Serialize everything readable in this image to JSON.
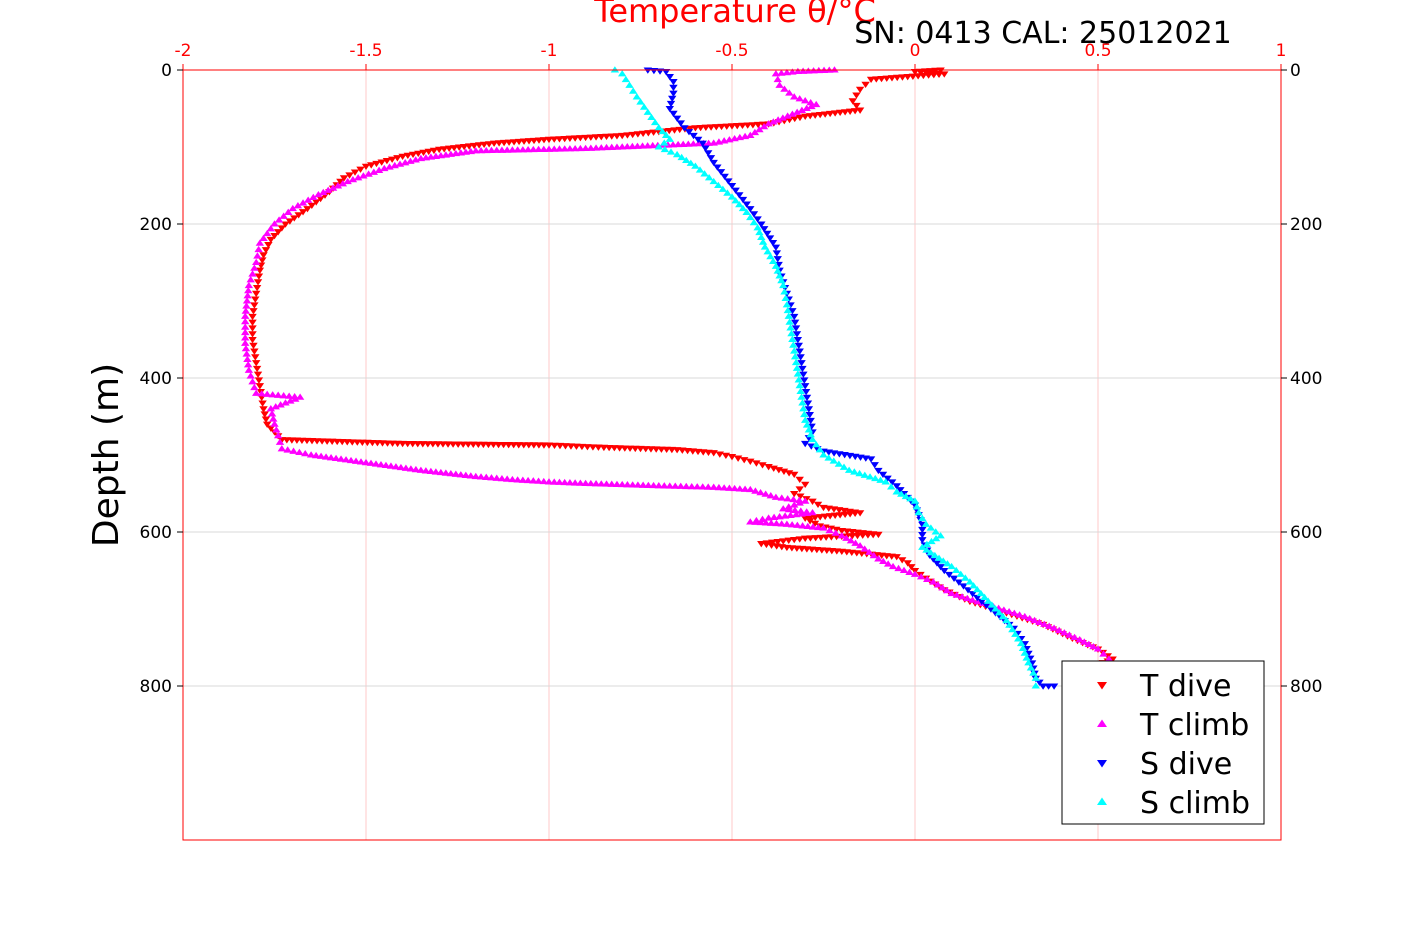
{
  "chart_data": {
    "type": "scatter",
    "title": "Temperature θ/°C",
    "subtitle": "SN: 0413  CAL: 25012021",
    "xlabel": "Temperature θ/°C",
    "ylabel": "Depth (m)",
    "xlim": [
      -2,
      1
    ],
    "ylim": [
      0,
      1000
    ],
    "y_reversed": true,
    "x_ticks": [
      "-2",
      "-1.5",
      "-1",
      "-0.5",
      "0",
      "0.5",
      "1"
    ],
    "x_tick_values": [
      -2,
      -1.5,
      -1,
      -0.5,
      0,
      0.5,
      1
    ],
    "y_ticks": [
      "0",
      "200",
      "400",
      "600",
      "800"
    ],
    "y_tick_values": [
      0,
      200,
      400,
      600,
      800
    ],
    "grid": true,
    "legend_position": "bottom-right",
    "colors": {
      "top_axis": "#ff0000",
      "t_dive": "#ff0000",
      "t_climb": "#ff00ff",
      "s_dive": "#0000ff",
      "s_climb": "#00ffff",
      "grid_x": "#ffc8c8",
      "grid_y": "#d9d9d9"
    },
    "series": [
      {
        "name": "T dive",
        "marker": "triangle-down",
        "color": "#ff0000",
        "points": [
          [
            0.07,
            0
          ],
          [
            0.0,
            2
          ],
          [
            0.08,
            5
          ],
          [
            -0.12,
            12
          ],
          [
            -0.15,
            25
          ],
          [
            -0.17,
            40
          ],
          [
            -0.15,
            52
          ],
          [
            -0.3,
            60
          ],
          [
            -0.4,
            70
          ],
          [
            -0.6,
            75
          ],
          [
            -0.8,
            85
          ],
          [
            -1.0,
            90
          ],
          [
            -1.15,
            95
          ],
          [
            -1.3,
            103
          ],
          [
            -1.4,
            112
          ],
          [
            -1.5,
            125
          ],
          [
            -1.56,
            140
          ],
          [
            -1.6,
            158
          ],
          [
            -1.66,
            180
          ],
          [
            -1.72,
            200
          ],
          [
            -1.76,
            220
          ],
          [
            -1.78,
            240
          ],
          [
            -1.79,
            260
          ],
          [
            -1.8,
            290
          ],
          [
            -1.81,
            320
          ],
          [
            -1.81,
            350
          ],
          [
            -1.8,
            380
          ],
          [
            -1.79,
            410
          ],
          [
            -1.78,
            440
          ],
          [
            -1.77,
            460
          ],
          [
            -1.73,
            480
          ],
          [
            -1.4,
            485
          ],
          [
            -1.0,
            487
          ],
          [
            -0.85,
            490
          ],
          [
            -0.65,
            493
          ],
          [
            -0.55,
            497
          ],
          [
            -0.5,
            502
          ],
          [
            -0.45,
            508
          ],
          [
            -0.4,
            515
          ],
          [
            -0.33,
            525
          ],
          [
            -0.3,
            538
          ],
          [
            -0.33,
            550
          ],
          [
            -0.28,
            560
          ],
          [
            -0.25,
            568
          ],
          [
            -0.15,
            575
          ],
          [
            -0.3,
            582
          ],
          [
            -0.26,
            592
          ],
          [
            -0.2,
            598
          ],
          [
            -0.1,
            603
          ],
          [
            -0.3,
            608
          ],
          [
            -0.42,
            615
          ],
          [
            -0.35,
            620
          ],
          [
            -0.2,
            625
          ],
          [
            -0.05,
            632
          ],
          [
            -0.02,
            640
          ],
          [
            0.0,
            650
          ],
          [
            0.03,
            660
          ],
          [
            0.08,
            675
          ],
          [
            0.15,
            690
          ],
          [
            0.25,
            705
          ],
          [
            0.35,
            720
          ],
          [
            0.43,
            738
          ],
          [
            0.5,
            752
          ],
          [
            0.54,
            765
          ],
          [
            0.5,
            772
          ]
        ]
      },
      {
        "name": "T climb",
        "marker": "triangle-up",
        "color": "#ff00ff",
        "points": [
          [
            -0.22,
            0
          ],
          [
            -0.32,
            2
          ],
          [
            -0.38,
            5
          ],
          [
            -0.37,
            20
          ],
          [
            -0.33,
            35
          ],
          [
            -0.27,
            45
          ],
          [
            -0.4,
            70
          ],
          [
            -0.45,
            85
          ],
          [
            -0.55,
            95
          ],
          [
            -0.8,
            100
          ],
          [
            -0.9,
            102
          ],
          [
            -1.0,
            103
          ],
          [
            -1.2,
            105
          ],
          [
            -1.35,
            115
          ],
          [
            -1.45,
            128
          ],
          [
            -1.55,
            145
          ],
          [
            -1.63,
            162
          ],
          [
            -1.7,
            180
          ],
          [
            -1.75,
            200
          ],
          [
            -1.79,
            225
          ],
          [
            -1.8,
            250
          ],
          [
            -1.82,
            280
          ],
          [
            -1.83,
            320
          ],
          [
            -1.83,
            355
          ],
          [
            -1.82,
            390
          ],
          [
            -1.8,
            420
          ],
          [
            -1.68,
            425
          ],
          [
            -1.76,
            440
          ],
          [
            -1.75,
            460
          ],
          [
            -1.74,
            475
          ],
          [
            -1.73,
            492
          ],
          [
            -1.65,
            500
          ],
          [
            -1.5,
            510
          ],
          [
            -1.35,
            520
          ],
          [
            -1.2,
            528
          ],
          [
            -1.1,
            532
          ],
          [
            -1.0,
            535
          ],
          [
            -0.9,
            537
          ],
          [
            -0.7,
            540
          ],
          [
            -0.55,
            542
          ],
          [
            -0.45,
            545
          ],
          [
            -0.38,
            555
          ],
          [
            -0.3,
            560
          ],
          [
            -0.36,
            570
          ],
          [
            -0.28,
            575
          ],
          [
            -0.4,
            582
          ],
          [
            -0.45,
            587
          ],
          [
            -0.35,
            590
          ],
          [
            -0.25,
            595
          ],
          [
            -0.2,
            605
          ],
          [
            -0.15,
            618
          ],
          [
            -0.1,
            635
          ],
          [
            -0.06,
            645
          ],
          [
            0.0,
            655
          ],
          [
            0.05,
            665
          ],
          [
            0.1,
            680
          ],
          [
            0.2,
            695
          ],
          [
            0.3,
            710
          ],
          [
            0.38,
            725
          ],
          [
            0.45,
            740
          ],
          [
            0.5,
            752
          ],
          [
            0.53,
            765
          ]
        ]
      },
      {
        "name": "S dive",
        "marker": "triangle-down",
        "color": "#0000ff",
        "points": [
          [
            -0.73,
            0
          ],
          [
            -0.68,
            2
          ],
          [
            -0.66,
            15
          ],
          [
            -0.66,
            30
          ],
          [
            -0.67,
            50
          ],
          [
            -0.63,
            75
          ],
          [
            -0.58,
            95
          ],
          [
            -0.55,
            120
          ],
          [
            -0.5,
            150
          ],
          [
            -0.45,
            180
          ],
          [
            -0.42,
            200
          ],
          [
            -0.38,
            230
          ],
          [
            -0.37,
            260
          ],
          [
            -0.35,
            290
          ],
          [
            -0.33,
            320
          ],
          [
            -0.32,
            350
          ],
          [
            -0.31,
            380
          ],
          [
            -0.3,
            410
          ],
          [
            -0.29,
            440
          ],
          [
            -0.28,
            470
          ],
          [
            -0.3,
            485
          ],
          [
            -0.25,
            495
          ],
          [
            -0.12,
            505
          ],
          [
            -0.1,
            520
          ],
          [
            -0.05,
            540
          ],
          [
            0.0,
            565
          ],
          [
            0.02,
            590
          ],
          [
            0.02,
            610
          ],
          [
            0.04,
            630
          ],
          [
            0.08,
            650
          ],
          [
            0.12,
            665
          ],
          [
            0.17,
            685
          ],
          [
            0.22,
            705
          ],
          [
            0.27,
            725
          ],
          [
            0.3,
            745
          ],
          [
            0.32,
            770
          ],
          [
            0.33,
            790
          ],
          [
            0.35,
            800
          ],
          [
            0.38,
            800
          ]
        ]
      },
      {
        "name": "S climb",
        "marker": "triangle-up",
        "color": "#00ffff",
        "points": [
          [
            -0.82,
            0
          ],
          [
            -0.8,
            5
          ],
          [
            -0.78,
            20
          ],
          [
            -0.76,
            35
          ],
          [
            -0.73,
            55
          ],
          [
            -0.7,
            75
          ],
          [
            -0.67,
            90
          ],
          [
            -0.7,
            100
          ],
          [
            -0.65,
            110
          ],
          [
            -0.6,
            125
          ],
          [
            -0.55,
            145
          ],
          [
            -0.5,
            165
          ],
          [
            -0.46,
            185
          ],
          [
            -0.43,
            205
          ],
          [
            -0.41,
            230
          ],
          [
            -0.38,
            255
          ],
          [
            -0.36,
            280
          ],
          [
            -0.35,
            305
          ],
          [
            -0.34,
            335
          ],
          [
            -0.33,
            365
          ],
          [
            -0.32,
            395
          ],
          [
            -0.31,
            425
          ],
          [
            -0.3,
            455
          ],
          [
            -0.28,
            480
          ],
          [
            -0.25,
            500
          ],
          [
            -0.18,
            520
          ],
          [
            -0.08,
            535
          ],
          [
            -0.05,
            548
          ],
          [
            0.0,
            560
          ],
          [
            0.01,
            575
          ],
          [
            0.03,
            590
          ],
          [
            0.07,
            605
          ],
          [
            0.02,
            620
          ],
          [
            0.1,
            645
          ],
          [
            0.15,
            665
          ],
          [
            0.2,
            690
          ],
          [
            0.25,
            715
          ],
          [
            0.29,
            745
          ],
          [
            0.31,
            770
          ],
          [
            0.33,
            790
          ],
          [
            0.33,
            800
          ]
        ]
      }
    ]
  }
}
